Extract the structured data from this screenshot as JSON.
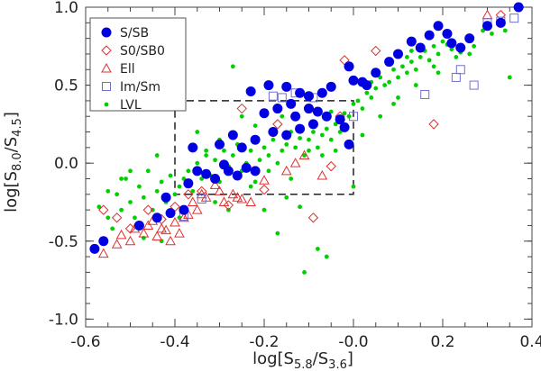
{
  "chart_data": {
    "type": "scatter",
    "xlabel": "log[S5.8/S3.6]",
    "ylabel": "log[S8.0/S4.5]",
    "xlabel_main": "log[S",
    "xlabel_sub1": "5.8",
    "xlabel_sep": "/S",
    "xlabel_sub2": "3.6",
    "xlabel_end": "]",
    "ylabel_main": "log[S",
    "ylabel_sub1": "8.0",
    "ylabel_sep": "/S",
    "ylabel_sub2": "4.5",
    "ylabel_end": "]",
    "xlim": [
      -0.6,
      0.4
    ],
    "ylim": [
      -1.05,
      1.0
    ],
    "xticks": [
      "-0.6",
      "-0.4",
      "-0.2",
      "-0.0",
      "0.2",
      "0.4"
    ],
    "yticks": [
      "-1.0",
      "-0.5",
      "0.0",
      "0.5",
      "1.0"
    ],
    "grid": false,
    "legend_position": "top-left",
    "region_box": {
      "x": [
        -0.4,
        0.0
      ],
      "y": [
        -0.2,
        0.4
      ],
      "style": "dashed"
    },
    "series": [
      {
        "name": "S/SB",
        "marker": "filled-circle",
        "color": "#0000e0",
        "points": [
          [
            -0.58,
            -0.55
          ],
          [
            -0.56,
            -0.5
          ],
          [
            -0.48,
            -0.4
          ],
          [
            -0.44,
            -0.35
          ],
          [
            -0.41,
            -0.32
          ],
          [
            -0.38,
            -0.3
          ],
          [
            -0.42,
            -0.22
          ],
          [
            -0.37,
            -0.13
          ],
          [
            -0.35,
            -0.05
          ],
          [
            -0.33,
            -0.07
          ],
          [
            -0.31,
            -0.1
          ],
          [
            -0.28,
            -0.05
          ],
          [
            -0.26,
            -0.08
          ],
          [
            -0.24,
            -0.03
          ],
          [
            -0.22,
            -0.05
          ],
          [
            -0.36,
            0.1
          ],
          [
            -0.3,
            0.12
          ],
          [
            -0.27,
            0.18
          ],
          [
            -0.22,
            0.15
          ],
          [
            -0.18,
            0.2
          ],
          [
            -0.15,
            0.18
          ],
          [
            -0.13,
            0.3
          ],
          [
            -0.1,
            0.35
          ],
          [
            -0.08,
            0.33
          ],
          [
            -0.06,
            0.3
          ],
          [
            -0.03,
            0.28
          ],
          [
            -0.02,
            0.23
          ],
          [
            -0.01,
            0.12
          ],
          [
            -0.25,
            0.1
          ],
          [
            -0.2,
            0.32
          ],
          [
            -0.17,
            0.35
          ],
          [
            -0.14,
            0.38
          ],
          [
            -0.23,
            0.46
          ],
          [
            -0.19,
            0.5
          ],
          [
            -0.15,
            0.49
          ],
          [
            -0.12,
            0.45
          ],
          [
            -0.1,
            0.43
          ],
          [
            -0.07,
            0.45
          ],
          [
            -0.05,
            0.49
          ],
          [
            -0.01,
            0.62
          ],
          [
            0.0,
            0.53
          ],
          [
            0.02,
            0.52
          ],
          [
            0.03,
            0.5
          ],
          [
            0.05,
            0.58
          ],
          [
            0.08,
            0.65
          ],
          [
            0.1,
            0.7
          ],
          [
            0.13,
            0.78
          ],
          [
            0.15,
            0.74
          ],
          [
            0.17,
            0.82
          ],
          [
            0.19,
            0.88
          ],
          [
            0.21,
            0.83
          ],
          [
            0.22,
            0.77
          ],
          [
            0.24,
            0.74
          ],
          [
            0.26,
            0.8
          ],
          [
            0.3,
            0.88
          ],
          [
            0.33,
            0.9
          ],
          [
            0.37,
            1.0
          ],
          [
            -0.12,
            0.22
          ],
          [
            -0.09,
            0.25
          ],
          [
            -0.29,
            -0.01
          ]
        ]
      },
      {
        "name": "S0/SB0",
        "marker": "open-diamond",
        "color": "#e03030",
        "points": [
          [
            -0.56,
            -0.3
          ],
          [
            -0.53,
            -0.35
          ],
          [
            -0.5,
            -0.42
          ],
          [
            -0.46,
            -0.3
          ],
          [
            -0.43,
            -0.36
          ],
          [
            -0.4,
            -0.28
          ],
          [
            -0.37,
            -0.2
          ],
          [
            -0.34,
            -0.18
          ],
          [
            -0.31,
            -0.1
          ],
          [
            -0.28,
            -0.27
          ],
          [
            -0.25,
            0.35
          ],
          [
            -0.2,
            -0.17
          ],
          [
            -0.17,
            0.25
          ],
          [
            -0.09,
            -0.35
          ],
          [
            -0.05,
            -0.02
          ],
          [
            -0.03,
            0.3
          ],
          [
            0.05,
            0.72
          ],
          [
            -0.02,
            0.66
          ],
          [
            0.18,
            0.25
          ],
          [
            0.33,
            0.95
          ]
        ]
      },
      {
        "name": "Ell",
        "marker": "open-triangle",
        "color": "#e03030",
        "points": [
          [
            -0.56,
            -0.58
          ],
          [
            -0.53,
            -0.52
          ],
          [
            -0.52,
            -0.46
          ],
          [
            -0.5,
            -0.5
          ],
          [
            -0.49,
            -0.42
          ],
          [
            -0.47,
            -0.45
          ],
          [
            -0.46,
            -0.4
          ],
          [
            -0.45,
            -0.37
          ],
          [
            -0.44,
            -0.47
          ],
          [
            -0.43,
            -0.42
          ],
          [
            -0.42,
            -0.43
          ],
          [
            -0.41,
            -0.5
          ],
          [
            -0.4,
            -0.38
          ],
          [
            -0.39,
            -0.45
          ],
          [
            -0.38,
            -0.35
          ],
          [
            -0.37,
            -0.33
          ],
          [
            -0.36,
            -0.25
          ],
          [
            -0.35,
            -0.3
          ],
          [
            -0.34,
            -0.2
          ],
          [
            -0.33,
            -0.22
          ],
          [
            -0.31,
            -0.14
          ],
          [
            -0.3,
            -0.18
          ],
          [
            -0.29,
            -0.25
          ],
          [
            -0.27,
            -0.2
          ],
          [
            -0.26,
            -0.22
          ],
          [
            -0.25,
            -0.23
          ],
          [
            -0.23,
            -0.25
          ],
          [
            -0.2,
            -0.11
          ],
          [
            -0.15,
            -0.05
          ],
          [
            -0.13,
            0.0
          ],
          [
            -0.11,
            0.05
          ],
          [
            -0.07,
            -0.08
          ],
          [
            0.3,
            0.95
          ]
        ]
      },
      {
        "name": "Im/Sm",
        "marker": "open-square",
        "color": "#7070d0",
        "points": [
          [
            -0.38,
            -0.34
          ],
          [
            -0.34,
            -0.23
          ],
          [
            -0.18,
            0.43
          ],
          [
            -0.16,
            0.42
          ],
          [
            -0.13,
            0.45
          ],
          [
            -0.09,
            0.42
          ],
          [
            0.0,
            0.3
          ],
          [
            0.16,
            0.44
          ],
          [
            0.23,
            0.55
          ],
          [
            0.24,
            0.6
          ],
          [
            0.27,
            0.5
          ],
          [
            0.3,
            0.9
          ],
          [
            0.33,
            0.91
          ],
          [
            0.36,
            0.93
          ]
        ]
      },
      {
        "name": "LVL",
        "marker": "small-dot",
        "color": "#00d000",
        "points": [
          [
            -0.57,
            -0.28
          ],
          [
            -0.55,
            -0.35
          ],
          [
            -0.54,
            -0.42
          ],
          [
            -0.53,
            -0.2
          ],
          [
            -0.52,
            -0.3
          ],
          [
            -0.51,
            -0.1
          ],
          [
            -0.5,
            -0.25
          ],
          [
            -0.49,
            -0.35
          ],
          [
            -0.48,
            -0.15
          ],
          [
            -0.47,
            -0.22
          ],
          [
            -0.46,
            -0.05
          ],
          [
            -0.45,
            -0.3
          ],
          [
            -0.44,
            -0.18
          ],
          [
            -0.43,
            -0.12
          ],
          [
            -0.42,
            -0.25
          ],
          [
            -0.41,
            -0.08
          ],
          [
            -0.4,
            -0.2
          ],
          [
            -0.39,
            -0.15
          ],
          [
            -0.38,
            -0.1
          ],
          [
            -0.37,
            -0.05
          ],
          [
            -0.36,
            -0.18
          ],
          [
            -0.35,
            0.0
          ],
          [
            -0.34,
            -0.1
          ],
          [
            -0.33,
            0.05
          ],
          [
            -0.32,
            -0.08
          ],
          [
            -0.31,
            0.02
          ],
          [
            -0.3,
            -0.12
          ],
          [
            -0.29,
            0.08
          ],
          [
            -0.28,
            -0.02
          ],
          [
            -0.27,
            0.05
          ],
          [
            -0.26,
            0.12
          ],
          [
            -0.25,
            -0.05
          ],
          [
            -0.24,
            0.0
          ],
          [
            -0.23,
            0.08
          ],
          [
            -0.22,
            -0.12
          ],
          [
            -0.21,
            0.02
          ],
          [
            -0.2,
            0.1
          ],
          [
            -0.19,
            0.05
          ],
          [
            -0.18,
            0.15
          ],
          [
            -0.17,
            0.0
          ],
          [
            -0.16,
            0.08
          ],
          [
            -0.15,
            0.12
          ],
          [
            -0.14,
            0.2
          ],
          [
            -0.13,
            0.1
          ],
          [
            -0.12,
            0.16
          ],
          [
            -0.11,
            0.05
          ],
          [
            -0.1,
            0.15
          ],
          [
            -0.09,
            0.2
          ],
          [
            -0.08,
            0.1
          ],
          [
            -0.07,
            0.18
          ],
          [
            -0.06,
            0.22
          ],
          [
            -0.05,
            0.15
          ],
          [
            -0.04,
            0.25
          ],
          [
            -0.03,
            0.2
          ],
          [
            -0.02,
            0.32
          ],
          [
            -0.01,
            0.3
          ],
          [
            0.0,
            0.38
          ],
          [
            0.01,
            0.4
          ],
          [
            0.02,
            0.35
          ],
          [
            0.03,
            0.45
          ],
          [
            0.04,
            0.42
          ],
          [
            0.05,
            0.48
          ],
          [
            0.06,
            0.55
          ],
          [
            0.07,
            0.5
          ],
          [
            0.08,
            0.52
          ],
          [
            0.09,
            0.6
          ],
          [
            0.1,
            0.55
          ],
          [
            0.11,
            0.62
          ],
          [
            0.12,
            0.58
          ],
          [
            0.13,
            0.65
          ],
          [
            0.14,
            0.6
          ],
          [
            0.15,
            0.68
          ],
          [
            0.16,
            0.72
          ],
          [
            0.17,
            0.66
          ],
          [
            0.18,
            0.75
          ],
          [
            0.19,
            0.7
          ],
          [
            0.2,
            0.78
          ],
          [
            0.21,
            0.76
          ],
          [
            0.22,
            0.73
          ],
          [
            0.24,
            0.71
          ],
          [
            0.27,
            0.75
          ],
          [
            0.29,
            0.85
          ],
          [
            0.31,
            0.83
          ],
          [
            0.34,
            0.85
          ],
          [
            0.35,
            0.55
          ],
          [
            -0.27,
            0.62
          ],
          [
            -0.33,
            0.08
          ],
          [
            -0.25,
            0.3
          ],
          [
            -0.17,
            -0.45
          ],
          [
            -0.12,
            -0.28
          ],
          [
            -0.06,
            -0.6
          ],
          [
            -0.08,
            -0.55
          ],
          [
            -0.11,
            -0.7
          ],
          [
            0.09,
            0.38
          ],
          [
            0.12,
            0.68
          ],
          [
            0.19,
            0.58
          ],
          [
            0.0,
            -0.15
          ],
          [
            -0.2,
            -0.3
          ],
          [
            -0.15,
            -0.22
          ],
          [
            -0.35,
            0.2
          ],
          [
            -0.44,
            0.05
          ],
          [
            -0.5,
            -0.05
          ],
          [
            -0.55,
            -0.18
          ],
          [
            -0.52,
            -0.1
          ],
          [
            -0.47,
            -0.48
          ],
          [
            -0.43,
            -0.5
          ],
          [
            -0.39,
            -0.35
          ],
          [
            -0.31,
            -0.25
          ],
          [
            -0.28,
            -0.3
          ],
          [
            -0.23,
            -0.15
          ],
          [
            -0.19,
            -0.05
          ],
          [
            -0.14,
            -0.1
          ],
          [
            -0.07,
            0.05
          ],
          [
            -0.04,
            0.08
          ],
          [
            0.02,
            0.18
          ],
          [
            0.06,
            0.3
          ],
          [
            0.1,
            0.42
          ],
          [
            0.14,
            0.5
          ],
          [
            0.18,
            0.62
          ],
          [
            0.23,
            0.68
          ],
          [
            0.26,
            0.7
          ],
          [
            -0.3,
            0.15
          ],
          [
            -0.22,
            0.24
          ],
          [
            -0.16,
            0.3
          ],
          [
            -0.1,
            0.08
          ],
          [
            -0.05,
            0.33
          ],
          [
            0.04,
            0.52
          ],
          [
            0.08,
            0.64
          ],
          [
            0.13,
            0.72
          ]
        ]
      }
    ]
  }
}
